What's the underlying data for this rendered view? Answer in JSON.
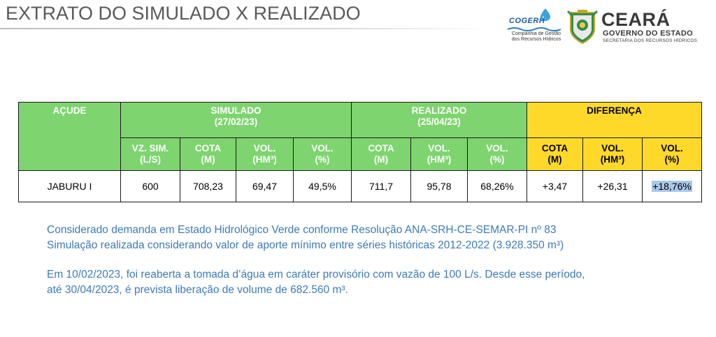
{
  "title": "EXTRATO DO SIMULADO X REALIZADO",
  "logos": {
    "cogerh": {
      "name": "COGERH",
      "subtitle_line1": "Companhia de Gestão",
      "subtitle_line2": "dos Recursos Hídricos"
    },
    "ceara": {
      "name": "CEARÁ",
      "government": "GOVERNO DO ESTADO",
      "secretariat": "SECRETARIA DOS RECURSOS HÍDRICOS"
    }
  },
  "colors": {
    "header_green": "#7ed46f",
    "header_yellow": "#ffd92a",
    "note_blue": "#3d7ab8",
    "highlight": "#a8c8e8"
  },
  "table": {
    "acude_header": "AÇUDE",
    "simulado": {
      "title": "SIMULADO",
      "date": "(27/02/23)",
      "columns": [
        {
          "line1": "VZ. SIM.",
          "line2": "(L/S)"
        },
        {
          "line1": "COTA",
          "line2": "(M)"
        },
        {
          "line1": "VOL.",
          "line2": "(HM³)"
        },
        {
          "line1": "VOL.",
          "line2": "(%)"
        }
      ]
    },
    "realizado": {
      "title": "REALIZADO",
      "date": "(25/04/23)",
      "columns": [
        {
          "line1": "COTA",
          "line2": "(M)"
        },
        {
          "line1": "VOL.",
          "line2": "(HM³)"
        },
        {
          "line1": "VOL.",
          "line2": "(%)"
        }
      ]
    },
    "diferenca": {
      "title": "DIFERENÇA",
      "columns": [
        {
          "line1": "COTA",
          "line2": "(M)"
        },
        {
          "line1": "VOL.",
          "line2": "(HM³)"
        },
        {
          "line1": "VOL.",
          "line2": "(%)"
        }
      ]
    },
    "rows": [
      {
        "acude": "JABURU I",
        "sim_vz": "600",
        "sim_cota": "708,23",
        "sim_vol_hm3": "69,47",
        "sim_vol_pct": "49,5%",
        "real_cota": "711,7",
        "real_vol_hm3": "95,78",
        "real_vol_pct": "68,26%",
        "dif_cota": "+3,47",
        "dif_vol_hm3": "+26,31",
        "dif_vol_pct": "+18,76%"
      }
    ]
  },
  "notes": {
    "line1": "Considerado demanda em Estado Hidrológico Verde conforme Resolução ANA-SRH-CE-SEMAR-PI nº 83",
    "line2": "Simulação realizada considerando valor de aporte mínimo entre séries históricas 2012-2022 (3.928.350 m³)",
    "line3": "Em 10/02/2023, foi reaberta a tomada d’água em caráter provisório com vazão de 100 L/s. Desde esse período,",
    "line4": "até 30/04/2023, é prevista liberação de volume de 682.560 m³."
  }
}
